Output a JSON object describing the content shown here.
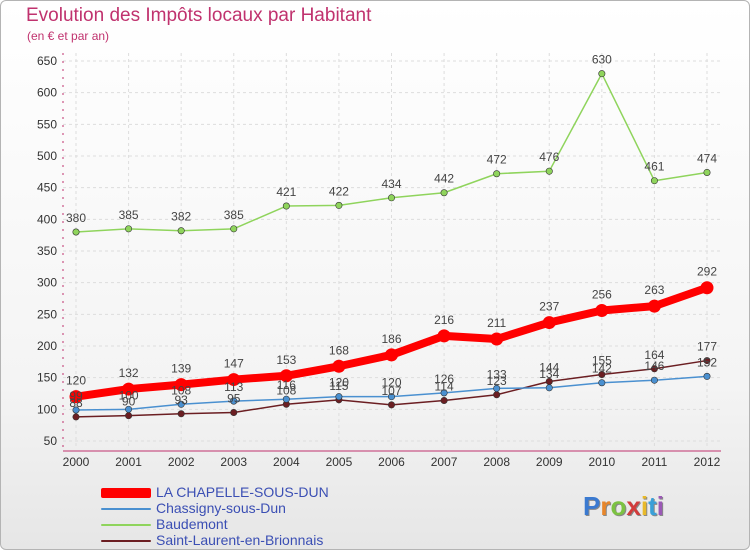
{
  "header": {
    "title": "Evolution des Impôts locaux par Habitant",
    "subtitle": "(en € et par an)"
  },
  "logo": {
    "text": "Proxiti"
  },
  "colors": {
    "series": [
      "#ff0000",
      "#4a90d0",
      "#8fd45c",
      "#6b1e22"
    ],
    "title": "#c0326e",
    "legend_text": "#3b4fb4"
  },
  "chart_data": {
    "type": "line",
    "title": "Evolution des Impôts locaux par Habitant",
    "subtitle": "(en € et par an)",
    "xlabel": "",
    "ylabel": "",
    "x": [
      "2000",
      "2001",
      "2002",
      "2003",
      "2004",
      "2005",
      "2006",
      "2007",
      "2008",
      "2009",
      "2010",
      "2011",
      "2012"
    ],
    "yticks": [
      "650",
      "600",
      "550",
      "500",
      "450",
      "400",
      "350",
      "300",
      "250",
      "200",
      "150",
      "100",
      "50"
    ],
    "ylim": [
      50,
      650
    ],
    "grid": true,
    "legend_position": "bottom-left",
    "series": [
      {
        "name": "LA CHAPELLE-SOUS-DUN",
        "values": [
          120,
          132,
          139,
          147,
          153,
          168,
          186,
          216,
          211,
          237,
          256,
          263,
          292
        ],
        "labels": [
          "120",
          "132",
          "139",
          "147",
          "153",
          "168",
          "186",
          "216",
          "211",
          "237",
          "256",
          "263",
          "292"
        ]
      },
      {
        "name": "Chassigny-sous-Dun",
        "values": [
          99,
          100,
          108,
          113,
          116,
          120,
          120,
          126,
          133,
          134,
          142,
          146,
          152
        ],
        "labels": [
          "99",
          "100",
          "108",
          "113",
          "116",
          "120",
          "120",
          "126",
          "133",
          "134",
          "142",
          "146",
          "152"
        ]
      },
      {
        "name": "Baudemont",
        "values": [
          380,
          385,
          382,
          385,
          421,
          422,
          434,
          442,
          472,
          476,
          630,
          461,
          474
        ],
        "labels": [
          "380",
          "385",
          "382",
          "385",
          "421",
          "422",
          "434",
          "442",
          "472",
          "476",
          "630",
          "461",
          "474"
        ]
      },
      {
        "name": "Saint-Laurent-en-Brionnais",
        "values": [
          88,
          90,
          93,
          95,
          108,
          115,
          107,
          114,
          123,
          144,
          155,
          164,
          177
        ],
        "labels": [
          "88",
          "90",
          "93",
          "95",
          "108",
          "115",
          "107",
          "114",
          "123",
          "144",
          "155",
          "164",
          "177"
        ]
      }
    ]
  }
}
